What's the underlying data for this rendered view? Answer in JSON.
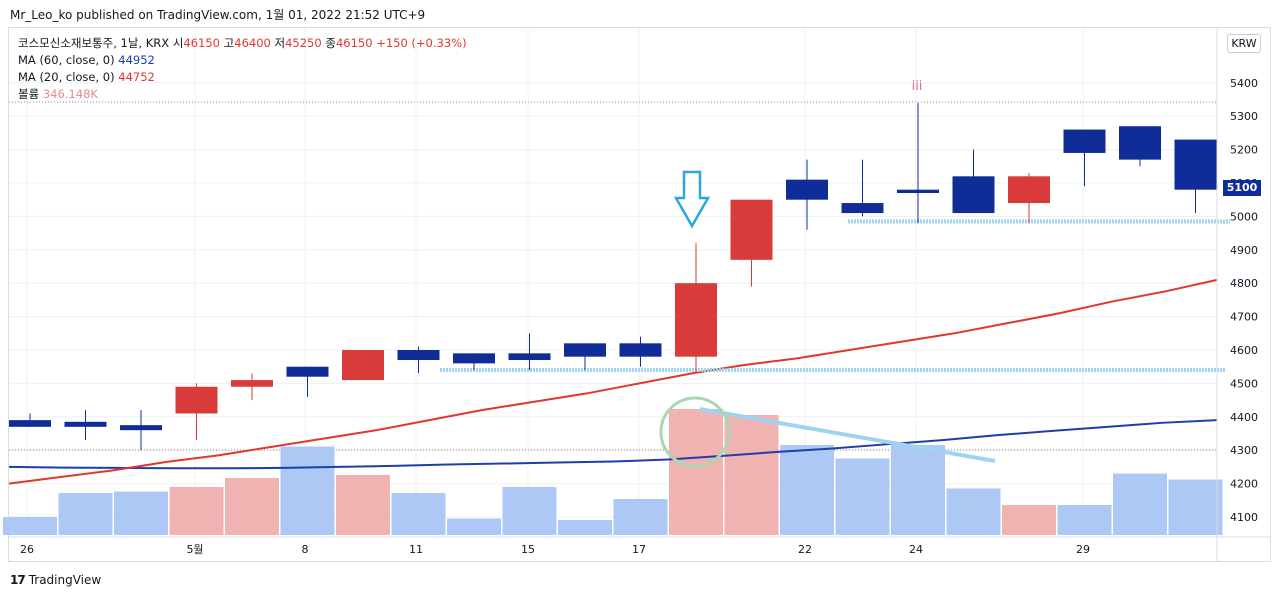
{
  "header": {
    "published": "Mr_Leo_ko published on TradingView.com, 1월 01, 2022 21:52 UTC+9"
  },
  "legend": {
    "symbol": "코스모신소재보통주, 1날, KRX",
    "open_label": "시",
    "open": "46150",
    "high_label": "고",
    "high": "46400",
    "low_label": "저",
    "low": "45250",
    "close_label": "종",
    "close": "46150",
    "change": "+150 (+0.33%)",
    "ma60_label": "MA (60, close, 0)",
    "ma60_value": "44952",
    "ma20_label": "MA (20, close, 0)",
    "ma20_value": "44752",
    "volume_label": "볼륨",
    "volume_value": "346.148K"
  },
  "currency_button": "KRW",
  "last_price_tag": "5100",
  "annotation_wave": "iii",
  "footer": {
    "logo_glyph": "17",
    "brand": "TradingView"
  },
  "colors": {
    "up": "#d93a3a",
    "down": "#0f2c99",
    "ma20": "#e0372f",
    "ma60": "#1c3faa",
    "vol_up": "#f0b3b1",
    "vol_down": "#adc8f5",
    "level": "#9fd4f0"
  },
  "chart_data": {
    "type": "candlestick",
    "x_tick_labels": [
      "26",
      "5월",
      "8",
      "11",
      "15",
      "17",
      "22",
      "24",
      "29"
    ],
    "y_tick_labels": [
      "4100",
      "4200",
      "4300",
      "4400",
      "4500",
      "4600",
      "4700",
      "4800",
      "4900",
      "5000",
      "5100",
      "5200",
      "5300",
      "5400"
    ],
    "y_range": [
      4050,
      5450
    ],
    "candles": [
      {
        "o": 4390,
        "h": 4410,
        "l": 4370,
        "c": 4370,
        "v": 0.06
      },
      {
        "o": 4385,
        "h": 4420,
        "l": 4330,
        "c": 4370,
        "v": 0.14
      },
      {
        "o": 4375,
        "h": 4420,
        "l": 4300,
        "c": 4360,
        "v": 0.145
      },
      {
        "o": 4410,
        "h": 4500,
        "l": 4330,
        "c": 4490,
        "v": 0.16
      },
      {
        "o": 4490,
        "h": 4530,
        "l": 4450,
        "c": 4510,
        "v": 0.19
      },
      {
        "o": 4550,
        "h": 4550,
        "l": 4460,
        "c": 4520,
        "v": 0.295
      },
      {
        "o": 4510,
        "h": 4600,
        "l": 4510,
        "c": 4600,
        "v": 0.2
      },
      {
        "o": 4600,
        "h": 4610,
        "l": 4530,
        "c": 4570,
        "v": 0.14
      },
      {
        "o": 4590,
        "h": 4590,
        "l": 4540,
        "c": 4560,
        "v": 0.055
      },
      {
        "o": 4590,
        "h": 4650,
        "l": 4540,
        "c": 4570,
        "v": 0.16
      },
      {
        "o": 4620,
        "h": 4620,
        "l": 4540,
        "c": 4580,
        "v": 0.05
      },
      {
        "o": 4620,
        "h": 4640,
        "l": 4550,
        "c": 4580,
        "v": 0.12
      },
      {
        "o": 4580,
        "h": 4920,
        "l": 4530,
        "c": 4800,
        "v": 0.42
      },
      {
        "o": 4870,
        "h": 5050,
        "l": 4790,
        "c": 5050,
        "v": 0.4
      },
      {
        "o": 5110,
        "h": 5170,
        "l": 4960,
        "c": 5050,
        "v": 0.3
      },
      {
        "o": 5040,
        "h": 5170,
        "l": 5000,
        "c": 5010,
        "v": 0.255
      },
      {
        "o": 5080,
        "h": 5340,
        "l": 4980,
        "c": 5070,
        "v": 0.3
      },
      {
        "o": 5120,
        "h": 5200,
        "l": 5010,
        "c": 5010,
        "v": 0.155
      },
      {
        "o": 5040,
        "h": 5130,
        "l": 4980,
        "c": 5120,
        "v": 0.1
      },
      {
        "o": 5260,
        "h": 5260,
        "l": 5090,
        "c": 5190,
        "v": 0.1
      },
      {
        "o": 5270,
        "h": 5270,
        "l": 5150,
        "c": 5170,
        "v": 0.205
      },
      {
        "o": 5230,
        "h": 5230,
        "l": 5010,
        "c": 5080,
        "v": 0.185
      }
    ],
    "ma20": [
      4200,
      4220,
      4240,
      4265,
      4285,
      4310,
      4335,
      4360,
      4390,
      4420,
      4445,
      4470,
      4500,
      4530,
      4555,
      4575,
      4600,
      4625,
      4650,
      4680,
      4710,
      4745,
      4775,
      4810
    ],
    "ma60": [
      4250,
      4248,
      4247,
      4246,
      4246,
      4247,
      4250,
      4253,
      4257,
      4260,
      4263,
      4266,
      4272,
      4283,
      4295,
      4305,
      4318,
      4330,
      4345,
      4358,
      4370,
      4382,
      4390
    ],
    "support_levels": [
      4540,
      4985
    ]
  }
}
